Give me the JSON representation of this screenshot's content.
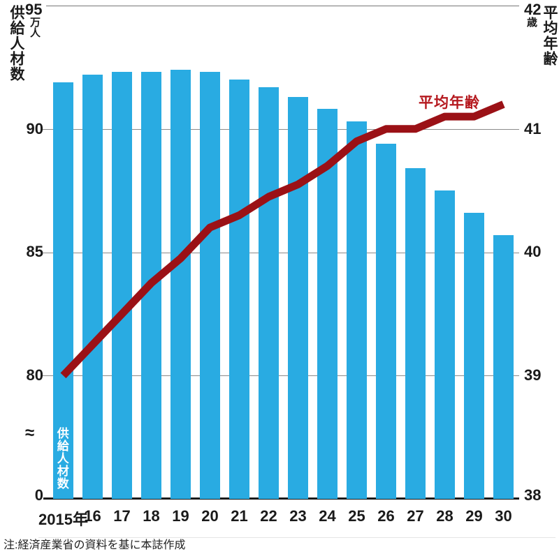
{
  "chart_data": {
    "type": "bar+line",
    "categories": [
      "2015年",
      "16",
      "17",
      "18",
      "19",
      "20",
      "21",
      "22",
      "23",
      "24",
      "25",
      "26",
      "27",
      "28",
      "29",
      "30"
    ],
    "series": [
      {
        "name": "供給人材数",
        "type": "bar",
        "axis": "left",
        "unit": "万人",
        "color": "#29abe2",
        "values": [
          91.9,
          92.2,
          92.3,
          92.3,
          92.4,
          92.3,
          92.0,
          91.7,
          91.3,
          90.8,
          90.3,
          89.4,
          88.4,
          87.5,
          86.6,
          85.7
        ]
      },
      {
        "name": "平均年齢",
        "type": "line",
        "axis": "right",
        "unit": "歳",
        "color": "#9b1116",
        "values": [
          39.0,
          39.25,
          39.5,
          39.75,
          39.95,
          40.2,
          40.3,
          40.45,
          40.55,
          40.7,
          40.9,
          41.0,
          41.0,
          41.1,
          41.1,
          41.2
        ]
      }
    ],
    "left_axis": {
      "title": "供給人材数",
      "top_label": "95",
      "unit": "万人",
      "ticks": [
        "90",
        "85",
        "80"
      ],
      "bottom_label": "0",
      "break_symbol": "≈",
      "visible_range": [
        80,
        95
      ],
      "grid": true
    },
    "right_axis": {
      "title": "平均年齢",
      "top_label": "42",
      "unit": "歳",
      "ticks": [
        "41",
        "40",
        "39"
      ],
      "bottom_label": "38",
      "range": [
        38,
        42
      ]
    },
    "inline_labels": {
      "bar_label": "供給人材数",
      "line_label": "平均年齢"
    },
    "legend_position": "inline"
  },
  "note": "注:経済産業省の資料を基に本誌作成",
  "colors": {
    "bar": "#29abe2",
    "line": "#9b1116",
    "line_label_text": "#b5191f",
    "grid": "#8a8a8a",
    "axis_text": "#1a1a1a"
  }
}
